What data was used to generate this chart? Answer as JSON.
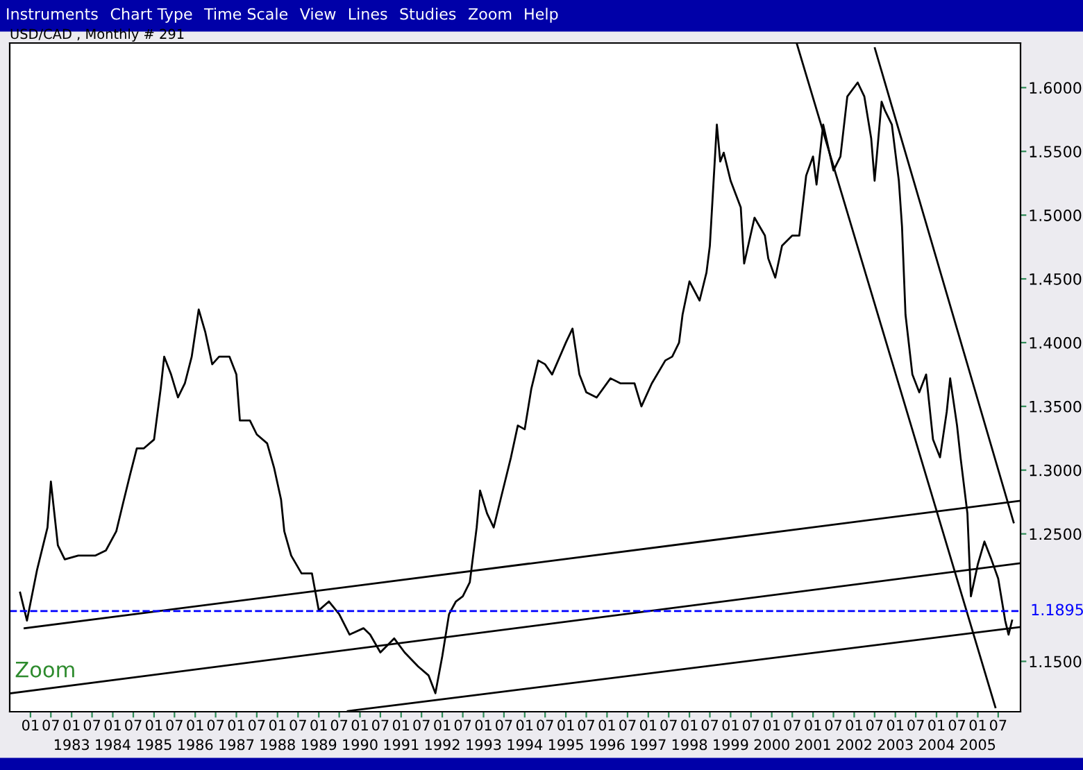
{
  "chart_data": {
    "type": "line",
    "title": "USD/CAD , Monthly # 291",
    "annotations": [
      "Instruments",
      "Chart Type",
      "Time Scale",
      "View",
      "Lines",
      "Studies",
      "Zoom",
      "Help",
      "Zoom"
    ],
    "xlim": [
      "1981-07-01",
      "2006-01-15"
    ],
    "ylim": [
      1.1105,
      1.635
    ],
    "xticks": [
      {
        "value": "1982-01",
        "label": "01"
      },
      {
        "value": "1982-07",
        "label": "07"
      },
      {
        "value": "1983-01",
        "label": "01\n1983"
      },
      {
        "value": "1983-07",
        "label": "07"
      },
      {
        "value": "1984-01",
        "label": "01\n1984"
      },
      {
        "value": "1984-07",
        "label": "07"
      },
      {
        "value": "1985-01",
        "label": "01\n1985"
      },
      {
        "value": "1985-07",
        "label": "07"
      },
      {
        "value": "1986-01",
        "label": "01\n1986"
      },
      {
        "value": "1986-07",
        "label": "07"
      },
      {
        "value": "1987-01",
        "label": "01\n1987"
      },
      {
        "value": "1987-07",
        "label": "07"
      },
      {
        "value": "1988-01",
        "label": "01\n1988"
      },
      {
        "value": "1988-07",
        "label": "07"
      },
      {
        "value": "1989-01",
        "label": "01\n1989"
      },
      {
        "value": "1989-07",
        "label": "07"
      },
      {
        "value": "1990-01",
        "label": "01\n1990"
      },
      {
        "value": "1990-07",
        "label": "07"
      },
      {
        "value": "1991-01",
        "label": "01\n1991"
      },
      {
        "value": "1991-07",
        "label": "07"
      },
      {
        "value": "1992-01",
        "label": "01\n1992"
      },
      {
        "value": "1992-07",
        "label": "07"
      },
      {
        "value": "1993-01",
        "label": "01\n1993"
      },
      {
        "value": "1993-07",
        "label": "07"
      },
      {
        "value": "1994-01",
        "label": "01\n1994"
      },
      {
        "value": "1994-07",
        "label": "07"
      },
      {
        "value": "1995-01",
        "label": "01\n1995"
      },
      {
        "value": "1995-07",
        "label": "07"
      },
      {
        "value": "1996-01",
        "label": "01\n1996"
      },
      {
        "value": "1996-07",
        "label": "07"
      },
      {
        "value": "1997-01",
        "label": "01\n1997"
      },
      {
        "value": "1997-07",
        "label": "07"
      },
      {
        "value": "1998-01",
        "label": "01\n1998"
      },
      {
        "value": "1998-07",
        "label": "07"
      },
      {
        "value": "1999-01",
        "label": "01\n1999"
      },
      {
        "value": "1999-07",
        "label": "07"
      },
      {
        "value": "2000-01",
        "label": "01\n2000"
      },
      {
        "value": "2000-07",
        "label": "07"
      },
      {
        "value": "2001-01",
        "label": "01\n2001"
      },
      {
        "value": "2001-07",
        "label": "07"
      },
      {
        "value": "2002-01",
        "label": "01\n2002"
      },
      {
        "value": "2002-07",
        "label": "07"
      },
      {
        "value": "2003-01",
        "label": "01\n2003"
      },
      {
        "value": "2003-07",
        "label": "07"
      },
      {
        "value": "2004-01",
        "label": "01\n2004"
      },
      {
        "value": "2004-07",
        "label": "07"
      },
      {
        "value": "2005-01",
        "label": "01\n2005"
      },
      {
        "value": "2005-07",
        "label": "07"
      }
    ],
    "yticks": [
      {
        "value": 1.15,
        "label": "1.1500"
      },
      {
        "value": 1.25,
        "label": "1.2500"
      },
      {
        "value": 1.3,
        "label": "1.3000"
      },
      {
        "value": 1.35,
        "label": "1.3500"
      },
      {
        "value": 1.4,
        "label": "1.4000"
      },
      {
        "value": 1.45,
        "label": "1.4500"
      },
      {
        "value": 1.5,
        "label": "1.5000"
      },
      {
        "value": 1.55,
        "label": "1.5500"
      },
      {
        "value": 1.6,
        "label": "1.6000"
      }
    ],
    "grid": false,
    "legend": false,
    "line_style": "solid",
    "ref_lines": [
      {
        "axis": "y",
        "value": 1.1895,
        "label": "1.1895",
        "color": "#0000ff",
        "line_style": "dashed"
      }
    ],
    "series": [
      {
        "color": "#000000",
        "x": [
          "1981-10",
          "1981-12",
          "1982-03",
          "1982-06",
          "1982-07",
          "1982-09",
          "1982-11",
          "1983-03",
          "1983-08",
          "1983-11",
          "1984-02",
          "1984-04",
          "1984-06",
          "1984-08",
          "1984-10",
          "1985-01",
          "1985-03",
          "1985-04",
          "1985-06",
          "1985-08",
          "1985-10",
          "1985-12",
          "1986-02",
          "1986-04",
          "1986-06",
          "1986-08",
          "1986-11",
          "1987-01",
          "1987-02",
          "1987-05",
          "1987-07",
          "1987-10",
          "1987-12",
          "1988-02",
          "1988-03",
          "1988-05",
          "1988-08",
          "1988-11",
          "1989-01",
          "1989-04",
          "1989-07",
          "1989-10",
          "1990-02",
          "1990-04",
          "1990-07",
          "1990-11",
          "1991-02",
          "1991-06",
          "1991-09",
          "1991-11",
          "1992-01",
          "1992-03",
          "1992-05",
          "1992-07",
          "1992-09",
          "1992-11",
          "1992-12",
          "1993-02",
          "1993-04",
          "1993-06",
          "1993-09",
          "1993-11",
          "1994-01",
          "1994-03",
          "1994-05",
          "1994-07",
          "1994-09",
          "1995-01",
          "1995-03",
          "1995-05",
          "1995-07",
          "1995-10",
          "1996-02",
          "1996-05",
          "1996-09",
          "1996-11",
          "1997-02",
          "1997-06",
          "1997-08",
          "1997-10",
          "1997-11",
          "1998-01",
          "1998-04",
          "1998-06",
          "1998-07",
          "1998-09",
          "1998-10",
          "1998-11",
          "1999-01",
          "1999-04",
          "1999-05",
          "1999-08",
          "1999-11",
          "1999-12",
          "2000-02",
          "2000-04",
          "2000-07",
          "2000-09",
          "2000-11",
          "2001-01",
          "2001-02",
          "2001-04",
          "2001-07",
          "2001-09",
          "2001-11",
          "2002-02",
          "2002-04",
          "2002-06",
          "2002-07",
          "2002-09",
          "2002-10",
          "2002-12",
          "2003-02",
          "2003-03",
          "2003-04",
          "2003-06",
          "2003-08",
          "2003-10",
          "2003-12",
          "2004-02",
          "2004-04",
          "2004-05",
          "2004-07",
          "2004-08",
          "2004-10",
          "2004-11",
          "2005-01",
          "2005-03",
          "2005-05",
          "2005-07",
          "2005-09",
          "2005-10",
          "2005-11"
        ],
        "values": [
          1.204,
          1.182,
          1.222,
          1.255,
          1.291,
          1.241,
          1.23,
          1.233,
          1.233,
          1.237,
          1.252,
          1.274,
          1.296,
          1.317,
          1.317,
          1.324,
          1.364,
          1.389,
          1.375,
          1.357,
          1.368,
          1.389,
          1.426,
          1.408,
          1.383,
          1.389,
          1.389,
          1.375,
          1.339,
          1.339,
          1.328,
          1.321,
          1.302,
          1.277,
          1.252,
          1.233,
          1.219,
          1.219,
          1.19,
          1.197,
          1.187,
          1.171,
          1.176,
          1.171,
          1.157,
          1.168,
          1.157,
          1.146,
          1.139,
          1.125,
          1.154,
          1.187,
          1.197,
          1.201,
          1.212,
          1.255,
          1.284,
          1.266,
          1.255,
          1.277,
          1.31,
          1.335,
          1.332,
          1.364,
          1.386,
          1.383,
          1.375,
          1.4,
          1.411,
          1.375,
          1.361,
          1.357,
          1.372,
          1.368,
          1.368,
          1.35,
          1.368,
          1.386,
          1.389,
          1.4,
          1.422,
          1.448,
          1.433,
          1.455,
          1.476,
          1.571,
          1.542,
          1.549,
          1.527,
          1.506,
          1.462,
          1.498,
          1.484,
          1.466,
          1.451,
          1.476,
          1.484,
          1.484,
          1.531,
          1.546,
          1.524,
          1.571,
          1.535,
          1.546,
          1.593,
          1.604,
          1.593,
          1.56,
          1.527,
          1.589,
          1.582,
          1.571,
          1.527,
          1.491,
          1.422,
          1.375,
          1.361,
          1.375,
          1.324,
          1.31,
          1.346,
          1.372,
          1.335,
          1.31,
          1.266,
          1.201,
          1.226,
          1.244,
          1.23,
          1.215,
          1.182,
          1.171,
          1.182
        ]
      },
      {
        "type": "line",
        "color": "#000000",
        "x": [
          "1981-11-10",
          "2006-01-15"
        ],
        "values": [
          1.176,
          1.276
        ]
      },
      {
        "type": "line",
        "color": "#000000",
        "x": [
          "1981-07-10",
          "2006-01-15"
        ],
        "values": [
          1.125,
          1.227
        ]
      },
      {
        "type": "line",
        "color": "#000000",
        "x": [
          "1989-09-15",
          "2006-01-15"
        ],
        "values": [
          1.111,
          1.177
        ]
      },
      {
        "type": "line",
        "color": "#000000",
        "x": [
          "2000-08-12",
          "2005-06-06"
        ],
        "values": [
          1.634,
          1.114
        ]
      },
      {
        "type": "line",
        "color": "#000000",
        "x": [
          "2002-07-03",
          "2005-11-15"
        ],
        "values": [
          1.631,
          1.259
        ]
      }
    ]
  }
}
